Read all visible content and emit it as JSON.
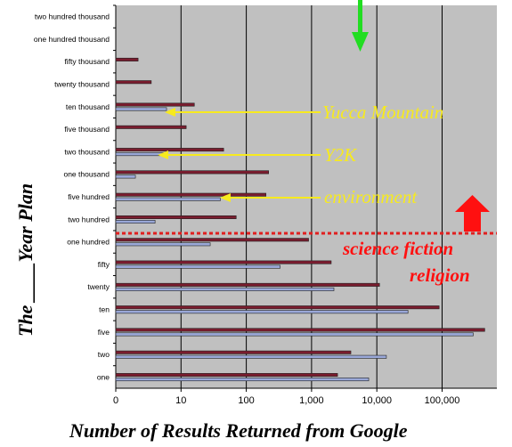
{
  "chart_data": {
    "type": "bar",
    "orientation": "horizontal",
    "x_scale": "log",
    "xlim": [
      1,
      500000
    ],
    "xlabel": "Number of Results Returned from Google",
    "ylabel_part1": "The",
    "ylabel_blank": "____",
    "ylabel_part2": "Year Plan",
    "x_ticks": [
      "0",
      "10",
      "100",
      "1,000",
      "10,000",
      "100,000"
    ],
    "x_tick_values": [
      1,
      10,
      100,
      1000,
      10000,
      100000
    ],
    "grid": true,
    "categories": [
      "one",
      "two",
      "five",
      "ten",
      "twenty",
      "fifty",
      "one hundred",
      "two hundred",
      "five hundred",
      "one thousand",
      "two thousand",
      "five thousand",
      "ten thousand",
      "twenty thousand",
      "fifty thousand",
      "one hundred thousand",
      "two hundred thousand"
    ],
    "series": [
      {
        "color": "#7a1c2e",
        "values": [
          2500,
          4000,
          450000,
          90000,
          11000,
          2000,
          900,
          70,
          200,
          220,
          45,
          12,
          16,
          3.5,
          2.2,
          null,
          null
        ]
      },
      {
        "color": "#9aa8d8",
        "values": [
          7500,
          14000,
          300000,
          30000,
          2200,
          330,
          28,
          4,
          40,
          2,
          6,
          null,
          6,
          null,
          null,
          null,
          null
        ]
      }
    ],
    "annotations": {
      "yucca": {
        "text": "Yucca Mountain",
        "color": "#f7ea1e"
      },
      "y2k": {
        "text": "Y2K",
        "color": "#f7ea1e"
      },
      "environment": {
        "text": "environment",
        "color": "#f7ea1e"
      },
      "scifi": {
        "text": "science fiction",
        "color": "#ff1010"
      },
      "religion": {
        "text": "religion",
        "color": "#ff1010"
      }
    },
    "colors": {
      "plot_bg": "#c0c0c0",
      "gridline": "#000000",
      "dotted_line": "#e02020",
      "green_arrow": "#22dd22",
      "red_arrow": "#ff1010"
    }
  }
}
